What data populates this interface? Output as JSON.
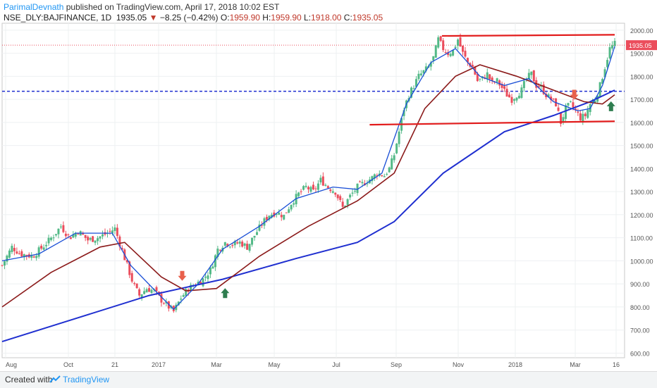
{
  "header": {
    "author": "ParimalDevnath",
    "published_text": " published on TradingView.com, April 17, 2018 10:02 EST",
    "symbol": "NSE_DLY:BAJFINANCE, 1D",
    "last": "1935.05",
    "change_arrow": "▼",
    "change": "−8.25 (−0.42%)",
    "o_label": "O:",
    "o_value": "1959.90",
    "h_label": "H:",
    "h_value": "1959.90",
    "l_label": "L:",
    "l_value": "1918.00",
    "c_label": "C:",
    "c_value": "1935.05"
  },
  "footer": {
    "created_with": "Created with",
    "brand": "TradingView"
  },
  "colors": {
    "up": "#53b987",
    "down": "#eb4d5c",
    "sma_short": "#1a4fd6",
    "sma_mid": "#8b1a1a",
    "sma_long": "#1f2fd0",
    "trend": "#e21c1c",
    "price_label_bg": "#eb4d5c",
    "dotted_level": "#1f2fd0",
    "arrow_up": "#2e7d4f",
    "arrow_down": "#e8604c"
  },
  "chart_data": {
    "type": "candlestick",
    "y_axis_labels": [
      "2000.00",
      "1900.00",
      "1800.00",
      "1700.00",
      "1600.00",
      "1500.00",
      "1400.00",
      "1300.00",
      "1200.00",
      "1100.00",
      "1000.00",
      "900.00",
      "800.00",
      "700.00",
      "600.00"
    ],
    "x_axis_labels": [
      "Aug",
      "Oct",
      "21",
      "2017",
      "Mar",
      "May",
      "Jul",
      "Sep",
      "Nov",
      "2018",
      "Mar",
      "16"
    ],
    "ylim": [
      580,
      2030
    ],
    "last_price_label": "1935.05",
    "close_path": [
      [
        0,
        980
      ],
      [
        8,
        1060
      ],
      [
        15,
        1030
      ],
      [
        25,
        1020
      ],
      [
        35,
        1070
      ],
      [
        42,
        1110
      ],
      [
        48,
        1150
      ],
      [
        55,
        1100
      ],
      [
        62,
        1130
      ],
      [
        70,
        1090
      ],
      [
        78,
        1100
      ],
      [
        86,
        1120
      ],
      [
        92,
        1140
      ],
      [
        97,
        1060
      ],
      [
        102,
        980
      ],
      [
        107,
        900
      ],
      [
        112,
        850
      ],
      [
        118,
        880
      ],
      [
        124,
        870
      ],
      [
        130,
        830
      ],
      [
        136,
        800
      ],
      [
        140,
        780
      ],
      [
        146,
        840
      ],
      [
        152,
        880
      ],
      [
        158,
        900
      ],
      [
        164,
        920
      ],
      [
        170,
        960
      ],
      [
        176,
        1050
      ],
      [
        182,
        1080
      ],
      [
        188,
        1070
      ],
      [
        194,
        1080
      ],
      [
        200,
        1060
      ],
      [
        206,
        1110
      ],
      [
        212,
        1160
      ],
      [
        218,
        1200
      ],
      [
        224,
        1210
      ],
      [
        230,
        1195
      ],
      [
        236,
        1250
      ],
      [
        242,
        1290
      ],
      [
        248,
        1320
      ],
      [
        254,
        1300
      ],
      [
        260,
        1350
      ],
      [
        266,
        1320
      ],
      [
        272,
        1300
      ],
      [
        278,
        1230
      ],
      [
        284,
        1280
      ],
      [
        290,
        1320
      ],
      [
        296,
        1340
      ],
      [
        302,
        1360
      ],
      [
        306,
        1380
      ],
      [
        312,
        1370
      ],
      [
        316,
        1400
      ],
      [
        320,
        1460
      ],
      [
        324,
        1560
      ],
      [
        328,
        1660
      ],
      [
        332,
        1720
      ],
      [
        336,
        1760
      ],
      [
        340,
        1800
      ],
      [
        344,
        1820
      ],
      [
        348,
        1840
      ],
      [
        352,
        1880
      ],
      [
        356,
        1960
      ],
      [
        360,
        1920
      ],
      [
        364,
        1900
      ],
      [
        368,
        1910
      ],
      [
        372,
        1960
      ],
      [
        376,
        1900
      ],
      [
        380,
        1860
      ],
      [
        384,
        1840
      ],
      [
        388,
        1780
      ],
      [
        392,
        1790
      ],
      [
        396,
        1810
      ],
      [
        400,
        1770
      ],
      [
        404,
        1780
      ],
      [
        408,
        1750
      ],
      [
        412,
        1720
      ],
      [
        416,
        1700
      ],
      [
        420,
        1720
      ],
      [
        424,
        1740
      ],
      [
        428,
        1790
      ],
      [
        432,
        1810
      ],
      [
        436,
        1760
      ],
      [
        440,
        1750
      ],
      [
        444,
        1720
      ],
      [
        448,
        1700
      ],
      [
        452,
        1680
      ],
      [
        456,
        1600
      ],
      [
        460,
        1660
      ],
      [
        464,
        1680
      ],
      [
        468,
        1650
      ],
      [
        472,
        1620
      ],
      [
        476,
        1630
      ],
      [
        480,
        1680
      ],
      [
        484,
        1700
      ],
      [
        488,
        1760
      ],
      [
        492,
        1840
      ],
      [
        496,
        1920
      ],
      [
        500,
        1940
      ]
    ],
    "sma_short": [
      [
        0,
        1000
      ],
      [
        30,
        1030
      ],
      [
        60,
        1120
      ],
      [
        90,
        1120
      ],
      [
        105,
        980
      ],
      [
        125,
        870
      ],
      [
        140,
        790
      ],
      [
        160,
        900
      ],
      [
        180,
        1050
      ],
      [
        210,
        1150
      ],
      [
        240,
        1270
      ],
      [
        270,
        1320
      ],
      [
        290,
        1310
      ],
      [
        310,
        1380
      ],
      [
        330,
        1680
      ],
      [
        350,
        1860
      ],
      [
        370,
        1920
      ],
      [
        390,
        1800
      ],
      [
        410,
        1760
      ],
      [
        430,
        1790
      ],
      [
        450,
        1690
      ],
      [
        470,
        1650
      ],
      [
        480,
        1660
      ],
      [
        490,
        1760
      ],
      [
        500,
        1930
      ]
    ],
    "sma_mid": [
      [
        0,
        800
      ],
      [
        40,
        950
      ],
      [
        80,
        1060
      ],
      [
        100,
        1080
      ],
      [
        130,
        930
      ],
      [
        150,
        870
      ],
      [
        175,
        880
      ],
      [
        210,
        1020
      ],
      [
        250,
        1150
      ],
      [
        290,
        1260
      ],
      [
        320,
        1380
      ],
      [
        345,
        1660
      ],
      [
        370,
        1800
      ],
      [
        390,
        1850
      ],
      [
        420,
        1800
      ],
      [
        450,
        1740
      ],
      [
        475,
        1690
      ],
      [
        490,
        1680
      ],
      [
        500,
        1720
      ]
    ],
    "sma_long": [
      [
        0,
        650
      ],
      [
        60,
        750
      ],
      [
        120,
        850
      ],
      [
        180,
        920
      ],
      [
        240,
        1010
      ],
      [
        290,
        1080
      ],
      [
        320,
        1170
      ],
      [
        360,
        1380
      ],
      [
        410,
        1560
      ],
      [
        450,
        1630
      ],
      [
        480,
        1690
      ],
      [
        500,
        1740
      ]
    ],
    "trend_lines": [
      {
        "from": [
          359,
          1975
        ],
        "to": [
          500,
          1980
        ]
      },
      {
        "from": [
          300,
          1590
        ],
        "to": [
          500,
          1605
        ]
      }
    ],
    "dotted_levels": [
      1735,
      1935
    ],
    "markers": [
      {
        "type": "down",
        "x": 147,
        "y": 935
      },
      {
        "type": "up",
        "x": 182,
        "y": 860
      },
      {
        "type": "down",
        "x": 467,
        "y": 1720
      },
      {
        "type": "up",
        "x": 497,
        "y": 1670
      }
    ]
  }
}
